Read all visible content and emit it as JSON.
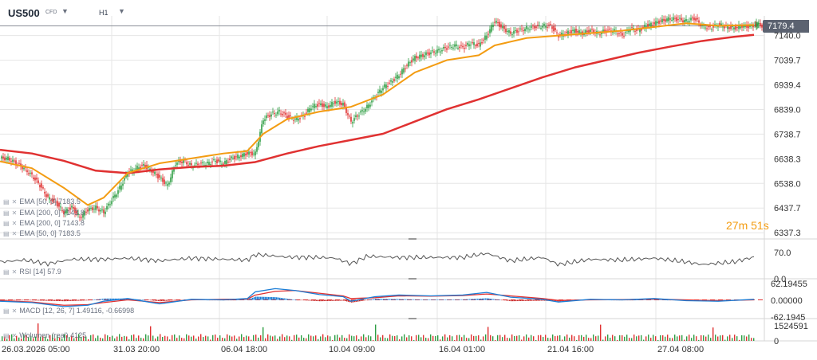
{
  "header": {
    "symbol": "US500",
    "instrument_type": "CFD",
    "timeframe": "H1",
    "dropdown_icon": "chevron-down-icon"
  },
  "price_tag": "7179.4",
  "timer": {
    "minutes": "27",
    "m": "m",
    "seconds": "51",
    "s": "s"
  },
  "legend_main": [
    {
      "text": "EMA [50, 0] 7183.5",
      "color": "#f39c12"
    },
    {
      "text": "EMA [200, 0] 7143.8",
      "color": "#e03131"
    },
    {
      "text": "EMA [200, 0] 7143.8",
      "color": "#e03131"
    },
    {
      "text": "EMA [50, 0] 7183.5",
      "color": "#f39c12"
    }
  ],
  "legend_rsi": "RSI [14] 57.9",
  "legend_macd": "MACD [12, 26, 7] 1.49116, -0.66998",
  "legend_vol": "Wolumen (real) 4125",
  "colors": {
    "up": "#2f9e44",
    "down": "#e03131",
    "ema50": "#f39c12",
    "ema200": "#e03131",
    "rsi": "#555555",
    "macd": "#1c7ed6",
    "signal": "#e03131",
    "grid": "#e6e6e6"
  },
  "chart_data": {
    "type": "candlestick",
    "main": {
      "y_ticks": [
        "7140.0",
        "7039.7",
        "6939.4",
        "6839.0",
        "6738.7",
        "6638.3",
        "6538.0",
        "6437.7",
        "6337.3"
      ],
      "ylim": [
        6312,
        7220
      ],
      "last_price": 7179.4,
      "ema50": [
        [
          0,
          6628
        ],
        [
          40,
          6600
        ],
        [
          80,
          6520
        ],
        [
          110,
          6450
        ],
        [
          130,
          6480
        ],
        [
          160,
          6580
        ],
        [
          200,
          6620
        ],
        [
          240,
          6640
        ],
        [
          280,
          6660
        ],
        [
          310,
          6670
        ],
        [
          330,
          6740
        ],
        [
          360,
          6800
        ],
        [
          400,
          6830
        ],
        [
          440,
          6850
        ],
        [
          480,
          6900
        ],
        [
          520,
          6990
        ],
        [
          560,
          7040
        ],
        [
          600,
          7060
        ],
        [
          620,
          7100
        ],
        [
          660,
          7130
        ],
        [
          700,
          7140
        ],
        [
          740,
          7150
        ],
        [
          780,
          7160
        ],
        [
          820,
          7175
        ],
        [
          860,
          7190
        ],
        [
          900,
          7180
        ],
        [
          945,
          7183
        ]
      ],
      "ema200": [
        [
          0,
          6675
        ],
        [
          40,
          6660
        ],
        [
          80,
          6630
        ],
        [
          120,
          6590
        ],
        [
          160,
          6580
        ],
        [
          200,
          6595
        ],
        [
          240,
          6605
        ],
        [
          280,
          6610
        ],
        [
          320,
          6625
        ],
        [
          360,
          6660
        ],
        [
          400,
          6690
        ],
        [
          440,
          6715
        ],
        [
          480,
          6740
        ],
        [
          520,
          6790
        ],
        [
          560,
          6840
        ],
        [
          600,
          6880
        ],
        [
          640,
          6925
        ],
        [
          680,
          6970
        ],
        [
          720,
          7010
        ],
        [
          760,
          7040
        ],
        [
          800,
          7070
        ],
        [
          840,
          7095
        ],
        [
          880,
          7118
        ],
        [
          920,
          7135
        ],
        [
          945,
          7143
        ]
      ],
      "candles": [
        [
          0,
          6640
        ],
        [
          10,
          6620
        ],
        [
          20,
          6600
        ],
        [
          30,
          6570
        ],
        [
          40,
          6530
        ],
        [
          50,
          6480
        ],
        [
          60,
          6460
        ],
        [
          70,
          6420
        ],
        [
          80,
          6440
        ],
        [
          90,
          6400
        ],
        [
          100,
          6430
        ],
        [
          110,
          6440
        ],
        [
          120,
          6420
        ],
        [
          130,
          6470
        ],
        [
          140,
          6520
        ],
        [
          150,
          6580
        ],
        [
          160,
          6600
        ],
        [
          170,
          6610
        ],
        [
          180,
          6590
        ],
        [
          190,
          6560
        ],
        [
          200,
          6530
        ],
        [
          210,
          6620
        ],
        [
          220,
          6630
        ],
        [
          230,
          6610
        ],
        [
          240,
          6615
        ],
        [
          250,
          6620
        ],
        [
          260,
          6630
        ],
        [
          270,
          6620
        ],
        [
          280,
          6640
        ],
        [
          290,
          6650
        ],
        [
          300,
          6660
        ],
        [
          310,
          6660
        ],
        [
          320,
          6800
        ],
        [
          330,
          6820
        ],
        [
          340,
          6830
        ],
        [
          350,
          6810
        ],
        [
          360,
          6800
        ],
        [
          370,
          6810
        ],
        [
          380,
          6850
        ],
        [
          390,
          6860
        ],
        [
          400,
          6850
        ],
        [
          410,
          6870
        ],
        [
          420,
          6860
        ],
        [
          430,
          6790
        ],
        [
          440,
          6820
        ],
        [
          450,
          6850
        ],
        [
          460,
          6890
        ],
        [
          470,
          6930
        ],
        [
          480,
          6950
        ],
        [
          490,
          6980
        ],
        [
          500,
          7020
        ],
        [
          510,
          7050
        ],
        [
          520,
          7060
        ],
        [
          530,
          7070
        ],
        [
          540,
          7080
        ],
        [
          550,
          7090
        ],
        [
          560,
          7100
        ],
        [
          570,
          7090
        ],
        [
          580,
          7110
        ],
        [
          590,
          7100
        ],
        [
          600,
          7140
        ],
        [
          610,
          7200
        ],
        [
          620,
          7170
        ],
        [
          630,
          7150
        ],
        [
          640,
          7160
        ],
        [
          650,
          7170
        ],
        [
          660,
          7175
        ],
        [
          670,
          7180
        ],
        [
          680,
          7180
        ],
        [
          690,
          7140
        ],
        [
          700,
          7150
        ],
        [
          710,
          7160
        ],
        [
          720,
          7150
        ],
        [
          730,
          7160
        ],
        [
          740,
          7150
        ],
        [
          750,
          7160
        ],
        [
          760,
          7160
        ],
        [
          770,
          7140
        ],
        [
          780,
          7170
        ],
        [
          790,
          7160
        ],
        [
          800,
          7180
        ],
        [
          810,
          7190
        ],
        [
          820,
          7200
        ],
        [
          830,
          7210
        ],
        [
          840,
          7205
        ],
        [
          850,
          7200
        ],
        [
          860,
          7210
        ],
        [
          870,
          7180
        ],
        [
          880,
          7170
        ],
        [
          890,
          7185
        ],
        [
          900,
          7175
        ],
        [
          910,
          7170
        ],
        [
          920,
          7180
        ],
        [
          930,
          7175
        ],
        [
          940,
          7190
        ],
        [
          945,
          7179
        ]
      ]
    },
    "rsi": {
      "y_ticks": [
        "70.0",
        "0.0"
      ],
      "ylim": [
        0,
        100
      ],
      "values": [
        [
          0,
          45
        ],
        [
          30,
          50
        ],
        [
          60,
          40
        ],
        [
          90,
          52
        ],
        [
          130,
          52
        ],
        [
          160,
          55
        ],
        [
          200,
          48
        ],
        [
          240,
          55
        ],
        [
          280,
          52
        ],
        [
          310,
          50
        ],
        [
          320,
          65
        ],
        [
          360,
          58
        ],
        [
          400,
          57
        ],
        [
          420,
          55
        ],
        [
          440,
          40
        ],
        [
          460,
          60
        ],
        [
          500,
          57
        ],
        [
          540,
          57
        ],
        [
          580,
          57
        ],
        [
          610,
          68
        ],
        [
          640,
          48
        ],
        [
          680,
          57
        ],
        [
          700,
          38
        ],
        [
          740,
          52
        ],
        [
          780,
          50
        ],
        [
          820,
          55
        ],
        [
          860,
          45
        ],
        [
          880,
          38
        ],
        [
          920,
          45
        ],
        [
          945,
          58
        ]
      ]
    },
    "macd": {
      "y_ticks": [
        "62.19455",
        "0.00000",
        "-62.1945"
      ],
      "ylim": [
        -70,
        70
      ],
      "macd_line": [
        [
          0,
          -5
        ],
        [
          40,
          -10
        ],
        [
          80,
          -25
        ],
        [
          110,
          -20
        ],
        [
          130,
          -5
        ],
        [
          160,
          5
        ],
        [
          200,
          -15
        ],
        [
          240,
          2
        ],
        [
          280,
          0
        ],
        [
          310,
          5
        ],
        [
          320,
          30
        ],
        [
          345,
          42
        ],
        [
          370,
          35
        ],
        [
          400,
          20
        ],
        [
          430,
          12
        ],
        [
          440,
          -5
        ],
        [
          470,
          12
        ],
        [
          500,
          18
        ],
        [
          540,
          15
        ],
        [
          580,
          18
        ],
        [
          610,
          28
        ],
        [
          640,
          10
        ],
        [
          680,
          2
        ],
        [
          700,
          -8
        ],
        [
          740,
          2
        ],
        [
          780,
          0
        ],
        [
          820,
          5
        ],
        [
          860,
          -3
        ],
        [
          900,
          -5
        ],
        [
          945,
          2
        ]
      ],
      "signal_line": [
        [
          0,
          -3
        ],
        [
          40,
          -8
        ],
        [
          80,
          -20
        ],
        [
          110,
          -18
        ],
        [
          130,
          -10
        ],
        [
          160,
          0
        ],
        [
          200,
          -10
        ],
        [
          240,
          0
        ],
        [
          280,
          2
        ],
        [
          310,
          3
        ],
        [
          320,
          18
        ],
        [
          345,
          32
        ],
        [
          370,
          35
        ],
        [
          400,
          25
        ],
        [
          430,
          15
        ],
        [
          440,
          5
        ],
        [
          470,
          8
        ],
        [
          500,
          15
        ],
        [
          540,
          14
        ],
        [
          580,
          16
        ],
        [
          610,
          22
        ],
        [
          640,
          15
        ],
        [
          680,
          5
        ],
        [
          700,
          -2
        ],
        [
          740,
          0
        ],
        [
          780,
          1
        ],
        [
          820,
          3
        ],
        [
          860,
          0
        ],
        [
          900,
          -3
        ],
        [
          945,
          0
        ]
      ]
    },
    "volume": {
      "y_ticks": [
        "1524591",
        "0"
      ],
      "ylim": [
        0,
        1700000
      ]
    },
    "x_labels": [
      "26.03.2026 05:00",
      "31.03 20:00",
      "06.04 18:00",
      "10.04 09:00",
      "16.04 01:00",
      "21.04 16:00",
      "27.04 08:00"
    ]
  }
}
